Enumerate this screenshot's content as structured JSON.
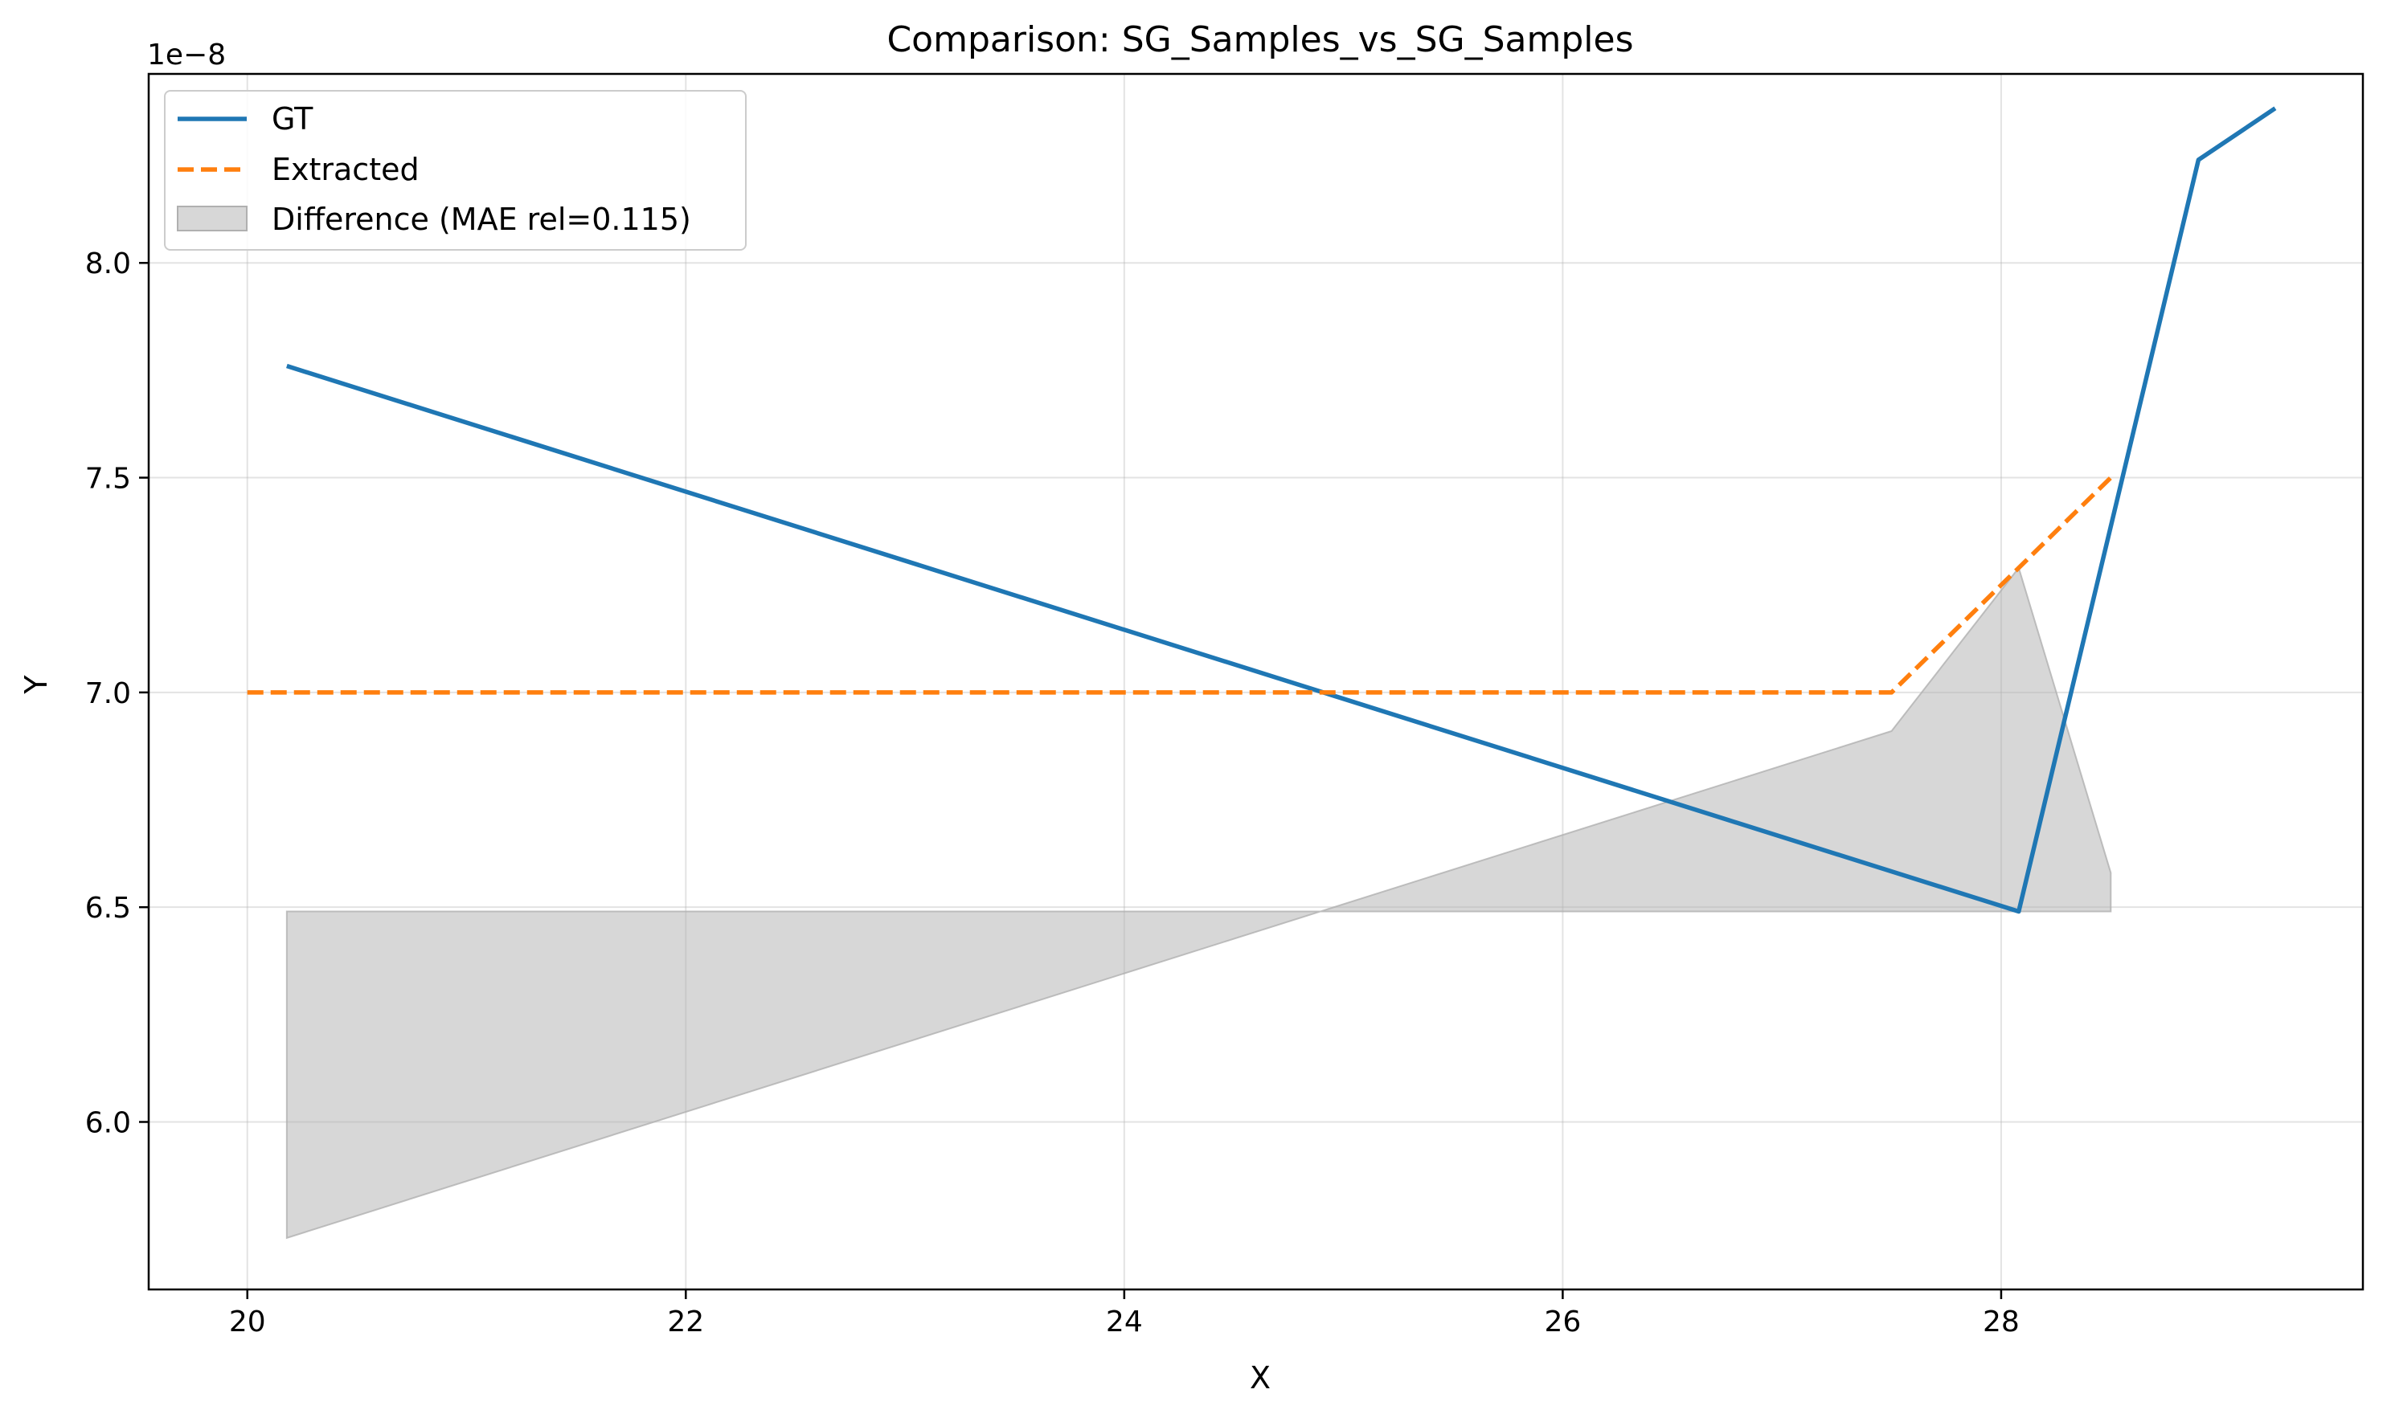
{
  "chart_data": {
    "type": "line",
    "title": "Comparison: SG_Samples_vs_SG_Samples",
    "xlabel": "X",
    "ylabel": "Y",
    "y_offset_label": "1e−8",
    "xlim": [
      19.55,
      29.65
    ],
    "ylim": [
      5.61,
      8.44
    ],
    "xticks": [
      20,
      22,
      24,
      26,
      28
    ],
    "xtick_labels": [
      "20",
      "22",
      "24",
      "26",
      "28"
    ],
    "yticks": [
      6.0,
      6.5,
      7.0,
      7.5,
      8.0
    ],
    "ytick_labels": [
      "6.0",
      "6.5",
      "7.0",
      "7.5",
      "8.0"
    ],
    "grid": true,
    "legend_position": "upper-left",
    "series": [
      {
        "name": "GT",
        "style": "solid",
        "color": "#1f77b4",
        "x": [
          20.18,
          28.08,
          28.9,
          29.25
        ],
        "y": [
          7.76,
          6.49,
          8.24,
          8.36
        ]
      },
      {
        "name": "Extracted",
        "style": "dashed",
        "color": "#ff7f0e",
        "x": [
          20.0,
          27.5,
          28.5
        ],
        "y": [
          7.0,
          7.0,
          7.5
        ]
      }
    ],
    "fill": {
      "name": "Difference (MAE rel=0.115)",
      "color": "#b0b0b0",
      "upper": {
        "x": [
          20.18,
          27.5,
          28.08,
          28.5
        ],
        "y": [
          6.49,
          6.49,
          6.49,
          6.49
        ]
      },
      "lower": {
        "x": [
          20.18,
          27.5,
          28.08,
          28.5
        ],
        "y": [
          5.73,
          6.91,
          7.29,
          6.58
        ]
      }
    }
  }
}
